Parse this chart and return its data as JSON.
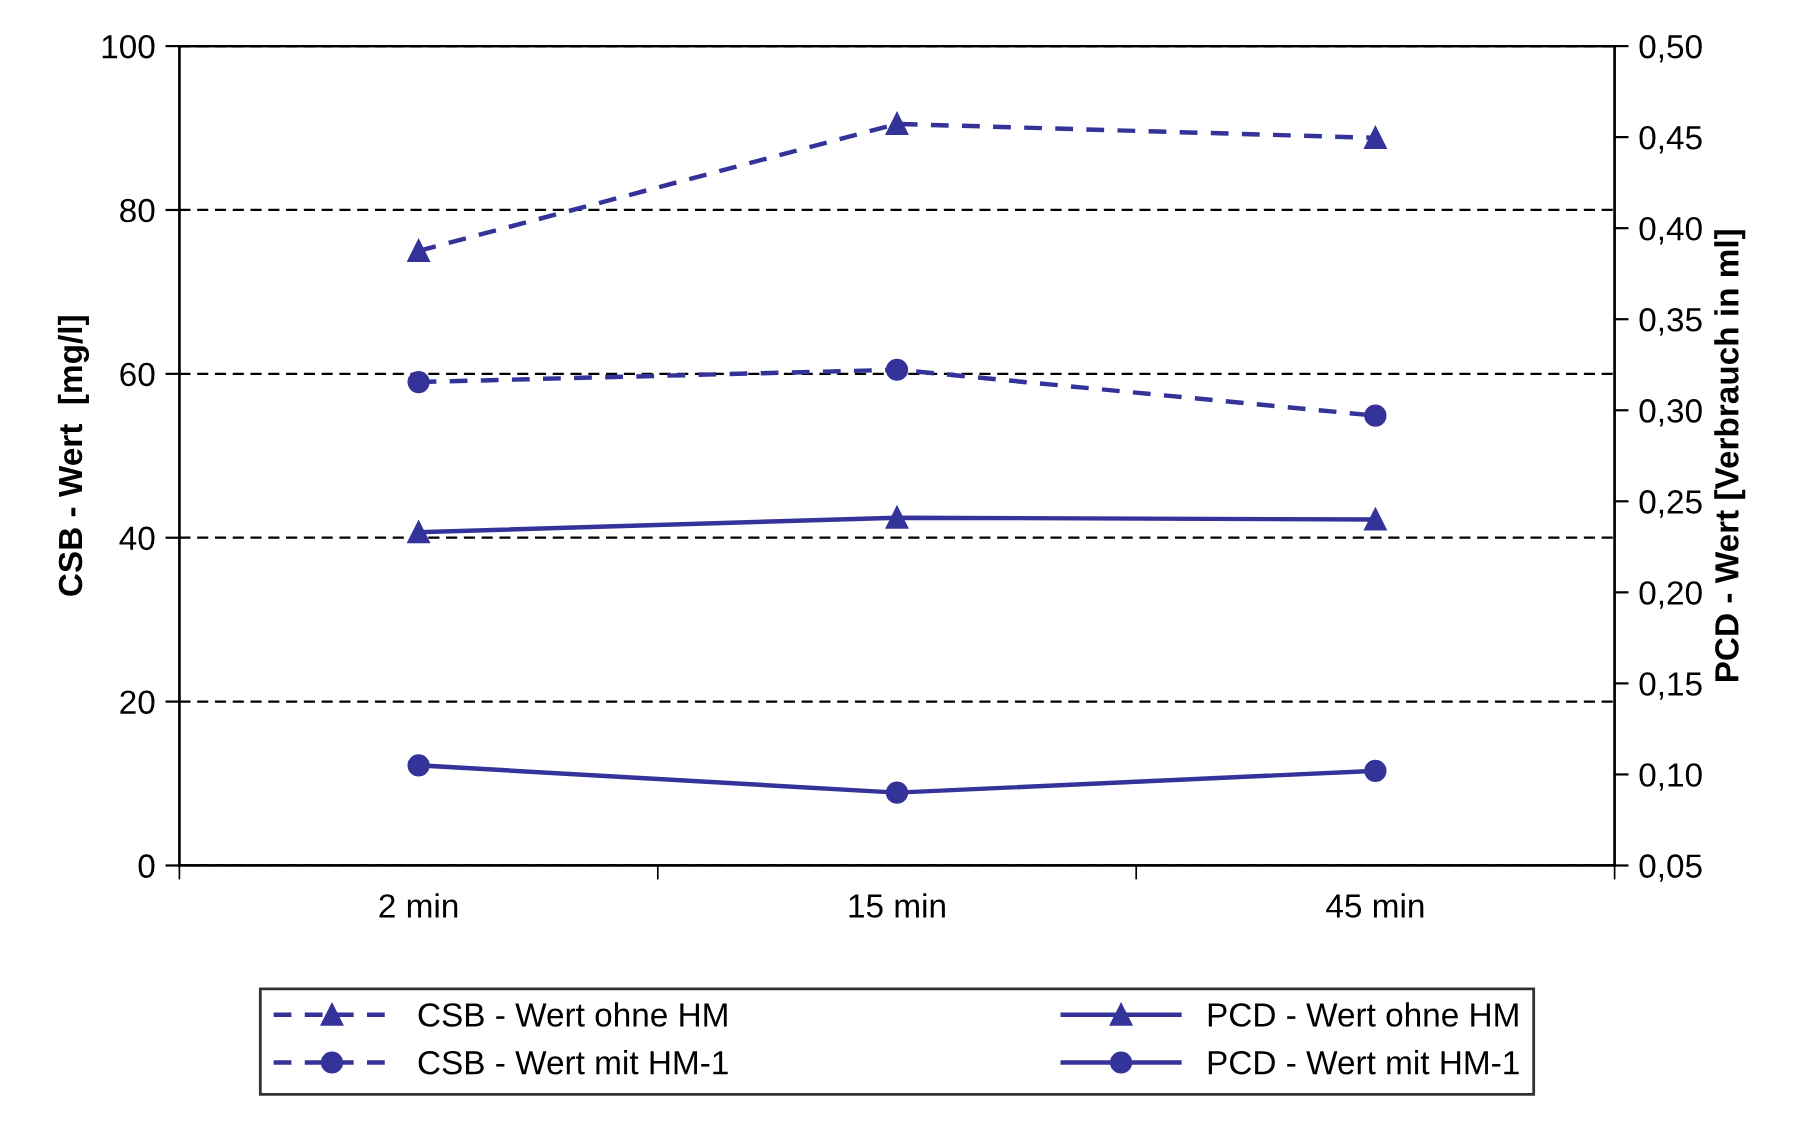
{
  "chart_data": {
    "type": "line",
    "categories": [
      "2 min",
      "15 min",
      "45 min"
    ],
    "ylabel": "CSB - Wert  [mg/l]",
    "y2label": "PCD - Wert [Verbrauch in ml]",
    "ylim": [
      0,
      100
    ],
    "yticks": [
      0,
      20,
      40,
      60,
      80,
      100
    ],
    "y2lim": [
      0.05,
      0.5
    ],
    "y2ticks": [
      {
        "value": 0.05,
        "label": "0,05"
      },
      {
        "value": 0.1,
        "label": "0,10"
      },
      {
        "value": 0.15,
        "label": "0,15"
      },
      {
        "value": 0.2,
        "label": "0,20"
      },
      {
        "value": 0.25,
        "label": "0,25"
      },
      {
        "value": 0.3,
        "label": "0,30"
      },
      {
        "value": 0.35,
        "label": "0,35"
      },
      {
        "value": 0.4,
        "label": "0,40"
      },
      {
        "value": 0.45,
        "label": "0,45"
      },
      {
        "value": 0.5,
        "label": "0,50"
      }
    ],
    "grid": "y",
    "legend": "bottom",
    "series": [
      {
        "name": "CSB - Wert ohne HM",
        "color": "#333399",
        "values": [
          75,
          90.5,
          88.8
        ],
        "marker": "triangle",
        "line_style": "dashed"
      },
      {
        "name": "CSB - Wert mit HM-1",
        "color": "#333399",
        "values": [
          59,
          60.5,
          54.9
        ],
        "marker": "circle",
        "line_style": "dashed"
      },
      {
        "name": "PCD - Wert ohne HM",
        "color": "#333399",
        "values": [
          0.233,
          0.241,
          0.24
        ],
        "marker": "triangle",
        "line_style": "solid",
        "axis": "y2"
      },
      {
        "name": "PCD - Wert mit HM-1",
        "color": "#333399",
        "values": [
          0.105,
          0.09,
          0.102
        ],
        "marker": "circle",
        "line_style": "solid",
        "axis": "y2"
      }
    ]
  }
}
